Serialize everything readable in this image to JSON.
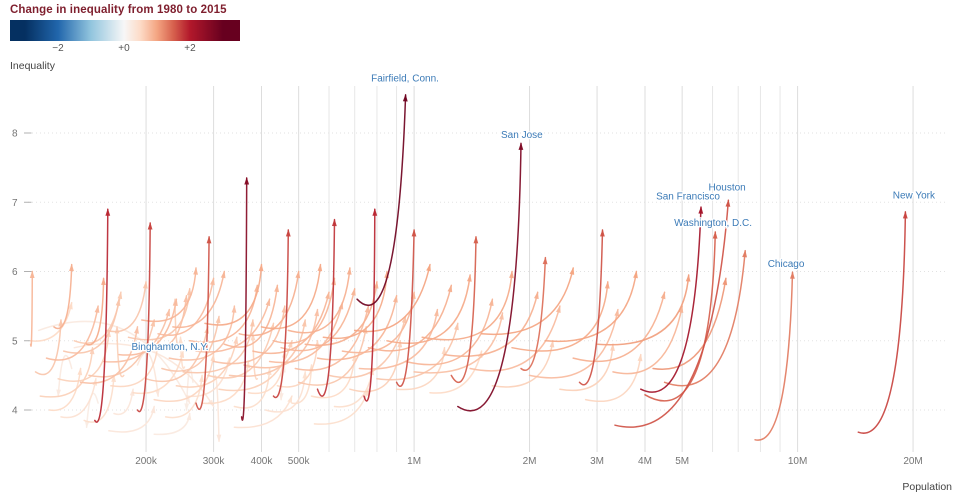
{
  "chart_data": {
    "type": "scatter",
    "mark": "arrow",
    "title": "Change in inequality from 1980 to 2015",
    "xlabel": "Population",
    "ylabel": "Inequality",
    "x_scale": "log",
    "x_ticks": [
      {
        "value": 200,
        "label": "200k"
      },
      {
        "value": 300,
        "label": "300k"
      },
      {
        "value": 400,
        "label": "400k"
      },
      {
        "value": 500,
        "label": "500k"
      },
      {
        "value": 1000,
        "label": "1M"
      },
      {
        "value": 2000,
        "label": "2M"
      },
      {
        "value": 3000,
        "label": "3M"
      },
      {
        "value": 4000,
        "label": "4M"
      },
      {
        "value": 5000,
        "label": "5M"
      },
      {
        "value": 10000,
        "label": "10M"
      },
      {
        "value": 20000,
        "label": "20M"
      }
    ],
    "x_minor_gridlines_thousands": [
      600,
      700,
      800,
      900,
      6000,
      7000,
      8000,
      9000
    ],
    "y_ticks": [
      8,
      7,
      6,
      5,
      4
    ],
    "y_range": [
      3.4,
      8.9
    ],
    "x_range_thousands": [
      100,
      21000
    ],
    "legend": {
      "ticks": [
        {
          "value": -2,
          "label": "−2"
        },
        {
          "value": 0,
          "label": "+0"
        },
        {
          "value": 2,
          "label": "+2"
        }
      ]
    },
    "colormap": {
      "name": "RdBu-reversed",
      "stops": [
        [
          -3,
          "#053061"
        ],
        [
          -2,
          "#2166ac"
        ],
        [
          -1,
          "#92c5de"
        ],
        [
          0,
          "#f7f7f7"
        ],
        [
          0.5,
          "#fddbc7"
        ],
        [
          1,
          "#f4a582"
        ],
        [
          1.5,
          "#d6604d"
        ],
        [
          2,
          "#b2182b"
        ],
        [
          3,
          "#67001f"
        ]
      ]
    },
    "arrow_format": [
      "pop_1980_thousands",
      "inequality_1980",
      "pop_2015_thousands",
      "inequality_2015",
      "color_change_value"
    ],
    "arrows": [
      [
        100,
        5.0,
        128,
        5.55,
        0.5
      ],
      [
        100,
        4.95,
        101,
        6.0,
        0.85
      ],
      [
        103,
        4.55,
        120,
        5.3,
        0.7
      ],
      [
        106,
        4.2,
        145,
        4.9,
        0.6
      ],
      [
        110,
        4.75,
        150,
        5.5,
        0.8
      ],
      [
        112,
        4.0,
        135,
        4.6,
        0.5
      ],
      [
        115,
        5.2,
        128,
        6.1,
        0.9
      ],
      [
        118,
        4.45,
        160,
        5.15,
        0.6
      ],
      [
        120,
        3.9,
        148,
        4.45,
        0.4
      ],
      [
        122,
        4.85,
        170,
        5.6,
        0.7
      ],
      [
        147,
        3.85,
        159,
        6.9,
        1.9
      ],
      [
        128,
        4.6,
        118,
        4.2,
        0.25
      ],
      [
        130,
        5.0,
        172,
        5.7,
        0.65
      ],
      [
        135,
        4.4,
        190,
        5.2,
        0.75
      ],
      [
        138,
        3.85,
        165,
        4.5,
        0.45
      ],
      [
        140,
        4.95,
        155,
        5.9,
        0.95
      ],
      [
        142,
        4.5,
        210,
        5.3,
        0.7
      ],
      [
        105,
        5.15,
        260,
        4.1,
        0.25
      ],
      [
        130,
        4.9,
        300,
        4.05,
        0.3
      ],
      [
        150,
        4.1,
        140,
        3.75,
        0.2
      ],
      [
        155,
        4.7,
        230,
        5.45,
        0.75
      ],
      [
        158,
        5.15,
        200,
        5.85,
        0.7
      ],
      [
        160,
        3.7,
        210,
        4.05,
        0.3
      ],
      [
        162,
        4.35,
        215,
        5.0,
        0.55
      ],
      [
        165,
        3.95,
        185,
        4.3,
        0.3
      ],
      [
        170,
        4.8,
        240,
        5.6,
        0.8
      ],
      [
        175,
        4.5,
        168,
        5.2,
        0.6
      ],
      [
        180,
        5.05,
        260,
        5.75,
        0.7
      ],
      [
        185,
        4.25,
        250,
        4.85,
        0.5
      ],
      [
        190,
        4.65,
        215,
        4.2,
        0.3
      ],
      [
        190,
        4.0,
        205,
        6.7,
        1.7
      ],
      [
        195,
        5.3,
        270,
        6.05,
        0.85
      ],
      [
        200,
        4.45,
        290,
        5.2,
        0.7
      ],
      [
        205,
        4.9,
        255,
        5.65,
        0.75
      ],
      [
        210,
        4.15,
        300,
        4.8,
        0.55
      ],
      [
        210,
        3.65,
        260,
        3.95,
        0.25
      ],
      [
        215,
        5.1,
        300,
        5.9,
        0.8
      ],
      [
        220,
        4.6,
        310,
        5.35,
        0.7
      ],
      [
        225,
        3.9,
        280,
        4.5,
        0.45
      ],
      [
        230,
        4.75,
        340,
        5.5,
        0.75
      ],
      [
        235,
        5.2,
        320,
        6.0,
        0.85
      ],
      [
        240,
        4.35,
        345,
        5.05,
        0.6
      ],
      [
        245,
        4.95,
        238,
        5.6,
        0.6
      ],
      [
        250,
        4.55,
        380,
        5.3,
        0.7
      ],
      [
        252,
        4.62,
        246,
        5.05,
        0.45
      ],
      [
        255,
        4.2,
        330,
        4.75,
        0.4
      ],
      [
        260,
        5.0,
        390,
        5.8,
        0.85
      ],
      [
        265,
        4.4,
        255,
        4.0,
        0.2
      ],
      [
        270,
        4.85,
        420,
        5.6,
        0.8
      ],
      [
        270,
        4.1,
        292,
        6.5,
        1.6
      ],
      [
        280,
        4.1,
        370,
        4.7,
        0.5
      ],
      [
        285,
        5.25,
        400,
        6.1,
        0.95
      ],
      [
        290,
        4.5,
        430,
        5.25,
        0.65
      ],
      [
        355,
        3.9,
        366,
        7.35,
        2.6
      ],
      [
        300,
        4.7,
        460,
        5.5,
        0.75
      ],
      [
        300,
        4.4,
        310,
        3.55,
        0.3
      ],
      [
        310,
        4.3,
        480,
        5.0,
        0.6
      ],
      [
        320,
        4.95,
        440,
        5.8,
        0.85
      ],
      [
        330,
        4.5,
        520,
        5.3,
        0.7
      ],
      [
        340,
        4.05,
        420,
        4.6,
        0.45
      ],
      [
        340,
        3.75,
        480,
        4.2,
        0.4
      ],
      [
        350,
        5.1,
        500,
        6.0,
        0.9
      ],
      [
        360,
        4.65,
        560,
        5.45,
        0.75
      ],
      [
        370,
        4.25,
        460,
        4.85,
        0.5
      ],
      [
        380,
        4.85,
        600,
        5.7,
        0.85
      ],
      [
        390,
        4.45,
        380,
        5.1,
        0.55
      ],
      [
        400,
        5.2,
        570,
        6.1,
        0.95
      ],
      [
        410,
        4.0,
        520,
        4.55,
        0.4
      ],
      [
        420,
        4.7,
        650,
        5.55,
        0.8
      ],
      [
        430,
        5.0,
        620,
        5.9,
        0.85
      ],
      [
        430,
        4.2,
        470,
        6.6,
        1.7
      ],
      [
        440,
        4.35,
        560,
        5.0,
        0.55
      ],
      [
        450,
        4.9,
        700,
        5.75,
        0.85
      ],
      [
        460,
        4.55,
        450,
        4.15,
        0.25
      ],
      [
        470,
        5.15,
        680,
        6.05,
        0.9
      ],
      [
        480,
        4.1,
        540,
        4.65,
        0.45
      ],
      [
        490,
        4.6,
        760,
        5.5,
        0.8
      ],
      [
        500,
        4.4,
        750,
        5.2,
        0.7
      ],
      [
        520,
        4.95,
        800,
        5.85,
        0.9
      ],
      [
        540,
        4.2,
        700,
        4.8,
        0.5
      ],
      [
        550,
        3.8,
        760,
        4.3,
        0.45
      ],
      [
        560,
        4.75,
        900,
        5.65,
        0.85
      ],
      [
        560,
        4.3,
        620,
        6.75,
        1.8
      ],
      [
        580,
        5.05,
        850,
        6.0,
        0.95
      ],
      [
        600,
        4.5,
        950,
        5.35,
        0.7
      ],
      [
        620,
        4.05,
        780,
        4.6,
        0.45
      ],
      [
        650,
        4.85,
        1000,
        5.7,
        0.85
      ],
      [
        680,
        4.3,
        920,
        5.0,
        0.6
      ],
      [
        700,
        5.15,
        1100,
        6.1,
        1.0
      ],
      [
        710,
        5.6,
        950,
        8.55,
        2.9
      ],
      [
        720,
        4.6,
        1150,
        5.45,
        0.8
      ],
      [
        740,
        4.2,
        790,
        6.9,
        1.9
      ],
      [
        760,
        4.9,
        1250,
        5.8,
        0.9
      ],
      [
        800,
        4.45,
        1300,
        5.25,
        0.7
      ],
      [
        850,
        5.0,
        1400,
        5.95,
        0.95
      ],
      [
        900,
        4.3,
        1200,
        4.9,
        0.55
      ],
      [
        900,
        4.4,
        1000,
        6.6,
        1.6
      ],
      [
        950,
        4.7,
        1600,
        5.6,
        0.85
      ],
      [
        1000,
        4.55,
        1700,
        5.4,
        0.75
      ],
      [
        1050,
        5.05,
        1800,
        6.0,
        0.95
      ],
      [
        1100,
        4.25,
        1500,
        4.85,
        0.5
      ],
      [
        1200,
        4.8,
        2100,
        5.7,
        0.9
      ],
      [
        1250,
        4.5,
        1450,
        6.5,
        1.5
      ],
      [
        1300,
        4.05,
        1900,
        7.85,
        2.7
      ],
      [
        1400,
        4.6,
        2400,
        5.5,
        0.8
      ],
      [
        1500,
        5.1,
        2600,
        6.05,
        1.0
      ],
      [
        1600,
        4.35,
        2300,
        5.0,
        0.6
      ],
      [
        1800,
        4.9,
        3200,
        5.85,
        0.95
      ],
      [
        1900,
        4.6,
        2200,
        6.2,
        1.4
      ],
      [
        2000,
        4.5,
        3400,
        5.45,
        0.8
      ],
      [
        2200,
        5.0,
        3800,
        6.0,
        1.0
      ],
      [
        2400,
        4.3,
        3300,
        4.95,
        0.6
      ],
      [
        2600,
        4.75,
        4500,
        5.7,
        0.9
      ],
      [
        2700,
        4.4,
        3100,
        6.6,
        1.6
      ],
      [
        2800,
        4.15,
        3900,
        4.8,
        0.55
      ],
      [
        3000,
        4.95,
        5200,
        5.95,
        1.05
      ],
      [
        3300,
        4.55,
        5000,
        5.5,
        0.85
      ],
      [
        3340,
        3.78,
        6600,
        7.03,
        1.6
      ],
      [
        3900,
        4.3,
        5600,
        6.93,
        2.2
      ],
      [
        4000,
        4.22,
        6100,
        6.57,
        1.5
      ],
      [
        4200,
        4.6,
        6500,
        5.9,
        1.1
      ],
      [
        4500,
        4.4,
        7300,
        6.3,
        1.3
      ],
      [
        7750,
        3.57,
        9700,
        5.99,
        1.3
      ],
      [
        14400,
        3.68,
        19100,
        6.86,
        1.7
      ]
    ],
    "labeled_cities": [
      {
        "text": "Fairfield, Conn.",
        "pop_thousands": 947,
        "ineq": 8.79
      },
      {
        "text": "San Jose",
        "pop_thousands": 1910,
        "ineq": 7.97
      },
      {
        "text": "San Francisco",
        "pop_thousands": 5180,
        "ineq": 7.08
      },
      {
        "text": "Houston",
        "pop_thousands": 6550,
        "ineq": 7.21
      },
      {
        "text": "Washington, D.C.",
        "pop_thousands": 6020,
        "ineq": 6.7
      },
      {
        "text": "Chicago",
        "pop_thousands": 9330,
        "ineq": 6.11
      },
      {
        "text": "New York",
        "pop_thousands": 20100,
        "ineq": 7.1
      },
      {
        "text": "Binghamton, N.Y.",
        "pop_thousands": 231,
        "ineq": 4.91
      }
    ],
    "colors": {
      "title_text": "#7f1f2e",
      "grid": "#dddddd",
      "grid_minor": "#e7e7e7",
      "grid_horizontal": "#dcdcdc",
      "tick_text": "#757575",
      "y_dash": "#b0b0b0",
      "axis_title_text": "#444444",
      "city_label": "#3c7bb7",
      "background": "#ffffff"
    }
  }
}
